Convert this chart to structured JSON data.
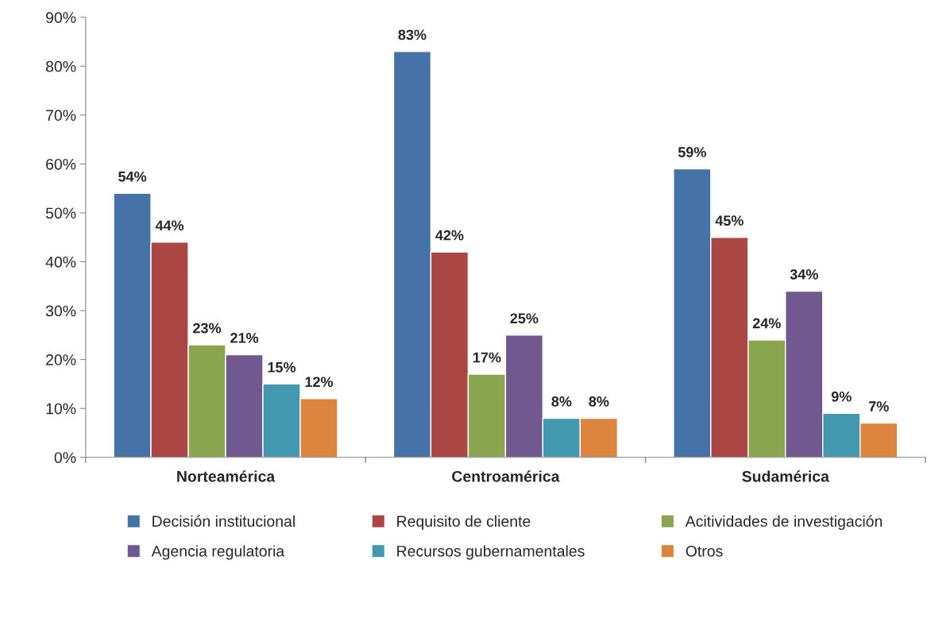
{
  "chart_data": {
    "type": "bar",
    "categories": [
      "Norteamérica",
      "Centroamérica",
      "Sudamérica"
    ],
    "ylim": [
      0,
      90
    ],
    "yticks": [
      {
        "value": 0,
        "label": "0%"
      },
      {
        "value": 10,
        "label": "10%"
      },
      {
        "value": 20,
        "label": "20%"
      },
      {
        "value": 30,
        "label": "30%"
      },
      {
        "value": 40,
        "label": "40%"
      },
      {
        "value": 50,
        "label": "50%"
      },
      {
        "value": 60,
        "label": "60%"
      },
      {
        "value": 70,
        "label": "70%"
      },
      {
        "value": 80,
        "label": "80%"
      },
      {
        "value": 90,
        "label": "90%"
      }
    ],
    "grid": false,
    "legend": "bottom",
    "series": [
      {
        "name": "Decisión institucional",
        "color": "#4572a7",
        "values": [
          54,
          83,
          59
        ],
        "value_labels": [
          "54%",
          "83%",
          "59%"
        ]
      },
      {
        "name": "Requisito de cliente",
        "color": "#aa4643",
        "values": [
          44,
          42,
          45
        ],
        "value_labels": [
          "44%",
          "42%",
          "45%"
        ]
      },
      {
        "name": "Acitividades de investigación",
        "color": "#89a54e",
        "values": [
          23,
          17,
          24
        ],
        "value_labels": [
          "23%",
          "17%",
          "24%"
        ]
      },
      {
        "name": "Agencia regulatoria",
        "color": "#71588f",
        "values": [
          21,
          25,
          34
        ],
        "value_labels": [
          "21%",
          "25%",
          "34%"
        ]
      },
      {
        "name": "Recursos gubernamentales",
        "color": "#4198af",
        "values": [
          15,
          8,
          9
        ],
        "value_labels": [
          "15%",
          "8%",
          "9%"
        ]
      },
      {
        "name": "Otros",
        "color": "#db843d",
        "values": [
          12,
          8,
          7
        ],
        "value_labels": [
          "12%",
          "8%",
          "7%"
        ]
      }
    ]
  }
}
